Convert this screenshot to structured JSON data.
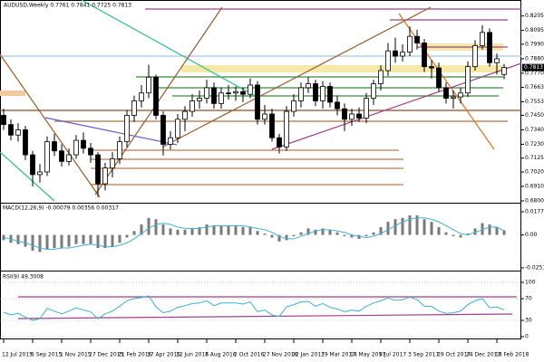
{
  "chart_data": [
    {
      "type": "candlestick",
      "title": "AUDUSD,Weekly 0.7761 0.7841 0.7725 0.7813",
      "categories": [
        "12 Jul 2015",
        null,
        null,
        null,
        "6 Sep 2015",
        null,
        null,
        null,
        "1 Nov 2015",
        null,
        null,
        null,
        "27 Dec 2015",
        null,
        null,
        null,
        "21 Feb 2016",
        null,
        null,
        null,
        "17 Apr 2016",
        null,
        null,
        null,
        "12 Jun 2016",
        null,
        null,
        null,
        "7 Aug 2016",
        null,
        null,
        null,
        "2 Oct 2016",
        null,
        null,
        null,
        "27 Nov 2016",
        null,
        null,
        null,
        "22 Jan 2017",
        null,
        null,
        null,
        "19 Mar 2017",
        null,
        null,
        null,
        "14 May 2017",
        null,
        null,
        null,
        "9 Jul 2017",
        null,
        null,
        null,
        "3 Sep 2017",
        null,
        null,
        null,
        "29 Oct 2017",
        null,
        null,
        null,
        "24 Dec 2017",
        null,
        null,
        null,
        "18 Feb 2018",
        null
      ],
      "open": [
        0.745,
        0.738,
        0.73,
        0.734,
        0.715,
        0.7,
        0.702,
        0.725,
        0.718,
        0.71,
        0.715,
        0.726,
        0.72,
        0.715,
        0.693,
        0.705,
        0.712,
        0.725,
        0.745,
        0.756,
        0.762,
        0.774,
        0.745,
        0.723,
        0.728,
        0.742,
        0.748,
        0.756,
        0.758,
        0.766,
        0.754,
        0.762,
        0.762,
        0.763,
        0.761,
        0.768,
        0.742,
        0.746,
        0.728,
        0.721,
        0.748,
        0.756,
        0.766,
        0.769,
        0.756,
        0.767,
        0.755,
        0.75,
        0.742,
        0.746,
        0.743,
        0.758,
        0.769,
        0.779,
        0.794,
        0.79,
        0.793,
        0.805,
        0.8,
        0.782,
        0.781,
        0.766,
        0.758,
        0.759,
        0.762,
        0.782,
        0.798,
        0.808,
        0.785,
        0.7761
      ],
      "high": [
        0.75,
        0.742,
        0.739,
        0.737,
        0.718,
        0.708,
        0.729,
        0.731,
        0.723,
        0.72,
        0.73,
        0.732,
        0.724,
        0.717,
        0.709,
        0.717,
        0.729,
        0.749,
        0.76,
        0.768,
        0.7835,
        0.776,
        0.748,
        0.733,
        0.746,
        0.752,
        0.761,
        0.764,
        0.772,
        0.77,
        0.766,
        0.768,
        0.767,
        0.766,
        0.773,
        0.771,
        0.753,
        0.75,
        0.731,
        0.752,
        0.761,
        0.77,
        0.774,
        0.772,
        0.771,
        0.77,
        0.76,
        0.754,
        0.75,
        0.751,
        0.762,
        0.772,
        0.783,
        0.8,
        0.804,
        0.799,
        0.8125,
        0.81,
        0.803,
        0.787,
        0.785,
        0.77,
        0.764,
        0.766,
        0.786,
        0.802,
        0.8135,
        0.811,
        0.792,
        0.7841
      ],
      "low": [
        0.734,
        0.726,
        0.725,
        0.711,
        0.691,
        0.694,
        0.699,
        0.714,
        0.706,
        0.707,
        0.712,
        0.716,
        0.709,
        0.683,
        0.688,
        0.698,
        0.708,
        0.721,
        0.74,
        0.751,
        0.758,
        0.742,
        0.7145,
        0.719,
        0.724,
        0.733,
        0.744,
        0.75,
        0.754,
        0.75,
        0.75,
        0.757,
        0.756,
        0.755,
        0.758,
        0.738,
        0.738,
        0.725,
        0.716,
        0.718,
        0.744,
        0.751,
        0.762,
        0.752,
        0.75,
        0.751,
        0.745,
        0.733,
        0.737,
        0.74,
        0.739,
        0.753,
        0.764,
        0.775,
        0.785,
        0.786,
        0.79,
        0.795,
        0.778,
        0.773,
        0.763,
        0.754,
        0.75,
        0.754,
        0.759,
        0.779,
        0.795,
        0.782,
        0.776,
        0.7725
      ],
      "close": [
        0.738,
        0.73,
        0.734,
        0.715,
        0.7,
        0.702,
        0.725,
        0.718,
        0.71,
        0.715,
        0.726,
        0.72,
        0.715,
        0.693,
        0.705,
        0.712,
        0.725,
        0.745,
        0.756,
        0.762,
        0.774,
        0.745,
        0.723,
        0.728,
        0.742,
        0.748,
        0.756,
        0.758,
        0.766,
        0.754,
        0.762,
        0.762,
        0.763,
        0.761,
        0.768,
        0.742,
        0.746,
        0.728,
        0.721,
        0.748,
        0.756,
        0.766,
        0.769,
        0.756,
        0.767,
        0.755,
        0.75,
        0.742,
        0.746,
        0.743,
        0.758,
        0.769,
        0.779,
        0.794,
        0.79,
        0.793,
        0.805,
        0.8,
        0.782,
        0.781,
        0.766,
        0.758,
        0.759,
        0.762,
        0.782,
        0.798,
        0.808,
        0.785,
        0.788,
        0.7813
      ],
      "up_color": "#ffffff",
      "down_color": "#000000",
      "ylim": [
        0.68,
        0.823
      ],
      "yticks": [
        0.8205,
        0.8095,
        {
          "value": 0.799,
          "label": "0.7990"
        },
        {
          "value": 0.788,
          "label": "0.7880"
        },
        {
          "value": 0.777,
          "label": "0.7770"
        },
        0.7663,
        0.7553,
        {
          "value": 0.745,
          "label": "0.7450"
        },
        {
          "value": 0.734,
          "label": "0.7340"
        },
        {
          "value": 0.723,
          "label": "0.7230"
        },
        0.7125,
        {
          "value": 0.702,
          "label": "0.7020"
        },
        {
          "value": 0.691,
          "label": "0.6910"
        },
        {
          "value": 0.68,
          "label": "0.6800"
        }
      ]
    },
    {
      "type": "macd",
      "title": "MACD(12,26,9) -0.00079 0.00356 0.00317",
      "series": [
        {
          "type": "bar",
          "color": "#7a7a7a",
          "values": [
            -0.004,
            -0.006,
            -0.007,
            -0.009,
            -0.012,
            -0.013,
            -0.011,
            -0.01,
            -0.01,
            -0.009,
            -0.007,
            -0.007,
            -0.007,
            -0.01,
            -0.01,
            -0.009,
            -0.006,
            -0.002,
            0.003,
            0.008,
            0.013,
            0.012,
            0.008,
            0.005,
            0.004,
            0.004,
            0.005,
            0.006,
            0.008,
            0.007,
            0.007,
            0.007,
            0.007,
            0.006,
            0.006,
            0.003,
            0.001,
            -0.002,
            -0.005,
            -0.004,
            -0.001,
            0.002,
            0.005,
            0.004,
            0.005,
            0.004,
            0.002,
            -0.001,
            -0.002,
            -0.003,
            -0.001,
            0.002,
            0.006,
            0.01,
            0.012,
            0.013,
            0.015,
            0.015,
            0.012,
            0.01,
            0.006,
            0.002,
            -0.001,
            -0.002,
            0.001,
            0.005,
            0.009,
            0.008,
            0.006,
            0.00356
          ]
        },
        {
          "type": "line",
          "color": "#3fb0d0",
          "values": [
            -0.002,
            -0.003,
            -0.005,
            -0.006,
            -0.008,
            -0.01,
            -0.011,
            -0.011,
            -0.01,
            -0.01,
            -0.009,
            -0.008,
            -0.007,
            -0.008,
            -0.009,
            -0.009,
            -0.008,
            -0.006,
            -0.003,
            0.001,
            0.005,
            0.008,
            0.009,
            0.008,
            0.006,
            0.005,
            0.005,
            0.005,
            0.006,
            0.007,
            0.007,
            0.007,
            0.007,
            0.007,
            0.006,
            0.005,
            0.004,
            0.002,
            -0.001,
            -0.003,
            -0.003,
            -0.001,
            0.001,
            0.003,
            0.004,
            0.004,
            0.003,
            0.002,
            0.0,
            -0.001,
            -0.002,
            -0.001,
            0.001,
            0.004,
            0.007,
            0.01,
            0.012,
            0.013,
            0.013,
            0.012,
            0.01,
            0.007,
            0.004,
            0.001,
            0.0,
            0.002,
            0.004,
            0.006,
            0.006,
            0.00317
          ]
        }
      ],
      "ylim": [
        -0.02517,
        0.0177
      ],
      "yticks": [
        0.0177,
        {
          "value": 0,
          "label": "0.00"
        },
        -0.02517
      ]
    },
    {
      "type": "line",
      "title": "RSI(9) 49.3008",
      "color": "#3fb0d0",
      "values": [
        45,
        40,
        43,
        36,
        30,
        33,
        52,
        47,
        42,
        47,
        53,
        49,
        46,
        33,
        42,
        47,
        56,
        66,
        70,
        72,
        75,
        55,
        44,
        47,
        54,
        57,
        61,
        62,
        66,
        57,
        62,
        62,
        62,
        60,
        64,
        46,
        49,
        40,
        37,
        55,
        59,
        64,
        65,
        56,
        61,
        54,
        51,
        46,
        49,
        47,
        56,
        62,
        66,
        71,
        67,
        68,
        73,
        68,
        56,
        56,
        47,
        43,
        44,
        47,
        59,
        66,
        70,
        53,
        55,
        49.3008
      ],
      "ylim": [
        0,
        100
      ],
      "yticks": [
        100,
        70,
        30,
        0
      ],
      "grid": true
    }
  ]
}
